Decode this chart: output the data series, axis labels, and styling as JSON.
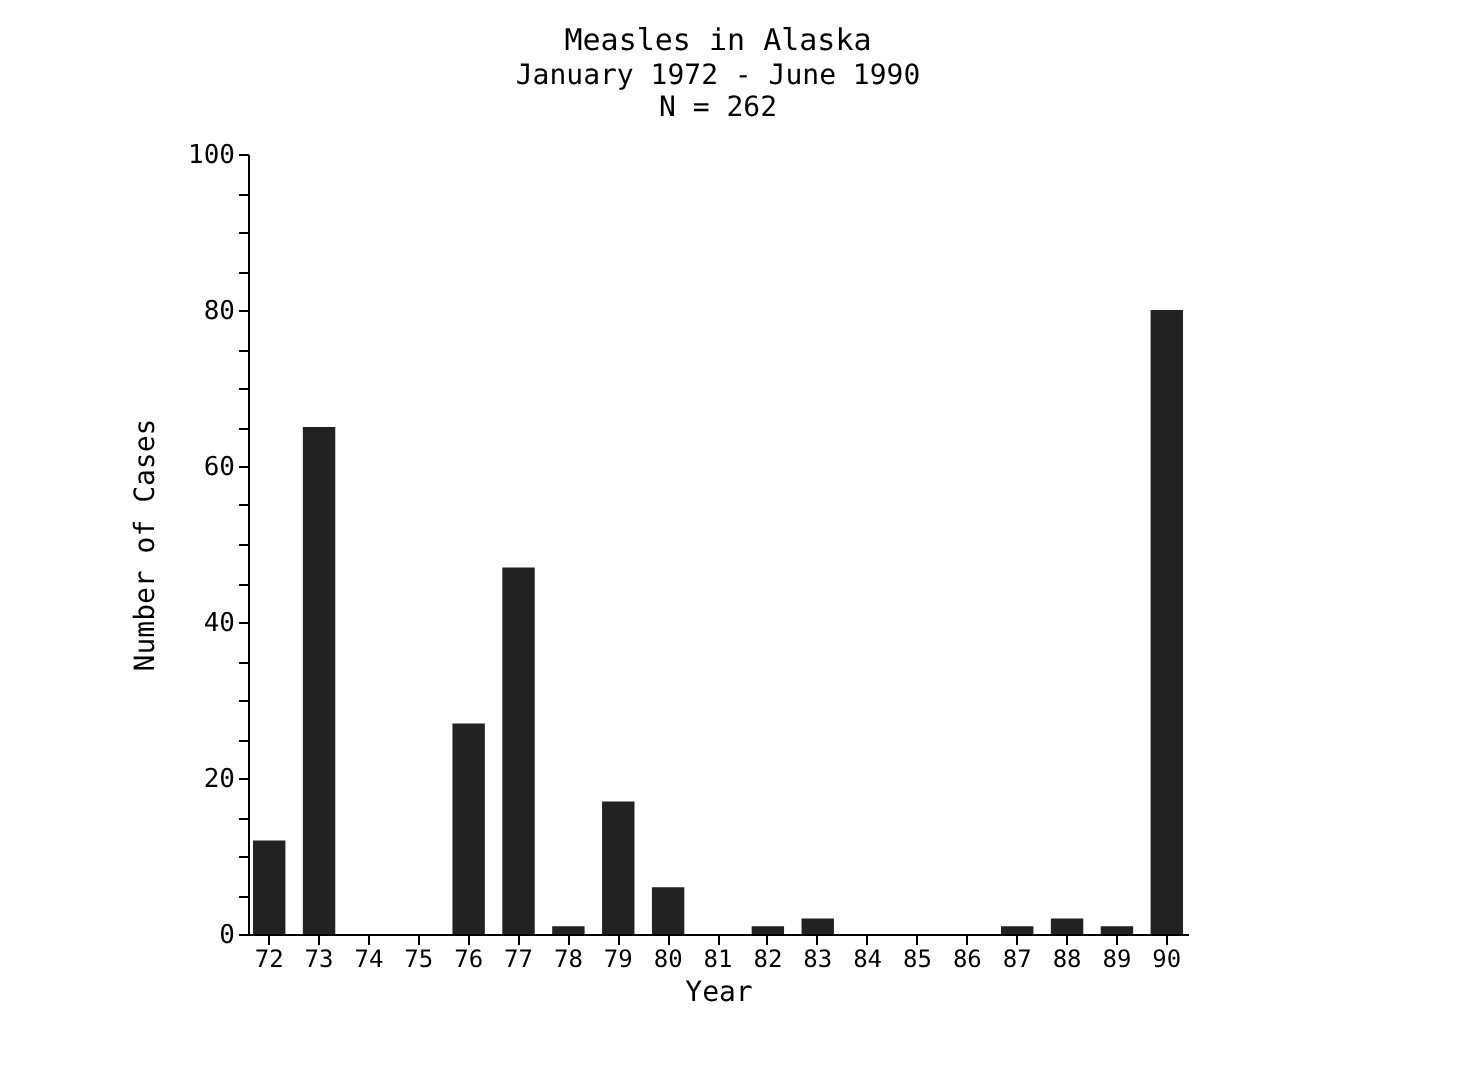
{
  "chart_data": {
    "type": "bar",
    "title": "Measles in Alaska",
    "subtitle": "January 1972 - June 1990",
    "annotations": [
      "N = 262"
    ],
    "xlabel": "Year",
    "ylabel": "Number of Cases",
    "categories": [
      "72",
      "73",
      "74",
      "75",
      "76",
      "77",
      "78",
      "79",
      "80",
      "81",
      "82",
      "83",
      "84",
      "85",
      "86",
      "87",
      "88",
      "89",
      "90"
    ],
    "values": [
      12,
      65,
      0,
      0,
      27,
      47,
      1,
      17,
      6,
      0,
      1,
      2,
      0,
      0,
      0,
      1,
      2,
      1,
      80
    ],
    "color": "#222222",
    "ylim": [
      0,
      100
    ],
    "yticks": [
      0,
      {
        "value": 5,
        "label": null
      },
      {
        "value": 10,
        "label": null
      },
      {
        "value": 15,
        "label": null
      },
      20,
      {
        "value": 25,
        "label": null
      },
      {
        "value": 30,
        "label": null
      },
      {
        "value": 35,
        "label": null
      },
      40,
      {
        "value": 45,
        "label": null
      },
      {
        "value": 50,
        "label": null
      },
      {
        "value": 55,
        "label": null
      },
      60,
      {
        "value": 65,
        "label": null
      },
      {
        "value": 70,
        "label": null
      },
      {
        "value": 75,
        "label": null
      },
      80,
      {
        "value": 85,
        "label": null
      },
      {
        "value": 90,
        "label": null
      },
      {
        "value": 95,
        "label": null
      },
      100
    ],
    "grid": false
  }
}
